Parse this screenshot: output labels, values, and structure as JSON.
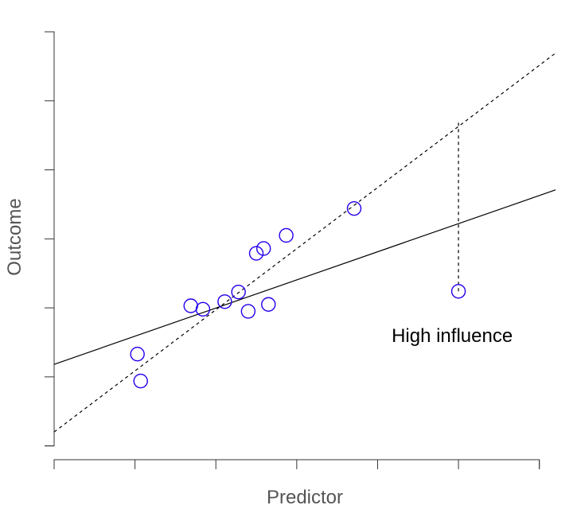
{
  "chart_data": {
    "type": "scatter",
    "xlabel": "Predictor",
    "ylabel": "Outcome",
    "xlim": [
      0,
      6.2
    ],
    "ylim": [
      -0.2,
      6.0
    ],
    "x_ticks": [
      0,
      1,
      2,
      3,
      4,
      5,
      6
    ],
    "y_ticks": [
      0,
      1,
      2,
      3,
      4,
      5,
      6
    ],
    "tick_labels_shown": false,
    "point_color": "#2200ee",
    "points": [
      {
        "x": 1.03,
        "y": 1.33
      },
      {
        "x": 1.07,
        "y": 0.94
      },
      {
        "x": 1.69,
        "y": 2.03
      },
      {
        "x": 1.84,
        "y": 1.98
      },
      {
        "x": 2.11,
        "y": 2.09
      },
      {
        "x": 2.28,
        "y": 2.23
      },
      {
        "x": 2.4,
        "y": 1.95
      },
      {
        "x": 2.5,
        "y": 2.79
      },
      {
        "x": 2.59,
        "y": 2.86
      },
      {
        "x": 2.65,
        "y": 2.05
      },
      {
        "x": 2.87,
        "y": 3.05
      },
      {
        "x": 3.71,
        "y": 3.44
      },
      {
        "x": 5.0,
        "y": 2.24,
        "influential": true
      }
    ],
    "lines": [
      {
        "style": "solid",
        "x": [
          -0.25,
          6.3
        ],
        "y": [
          1.08,
          3.75
        ]
      },
      {
        "style": "dashed",
        "x": [
          -0.25,
          6.3
        ],
        "y": [
          -0.02,
          5.78
        ]
      }
    ],
    "residual_segment": {
      "x": 5.0,
      "y_from": 2.24,
      "y_to": 4.69
    },
    "annotation": {
      "text": "High influence",
      "x": 5.0,
      "y": 1.6
    }
  }
}
